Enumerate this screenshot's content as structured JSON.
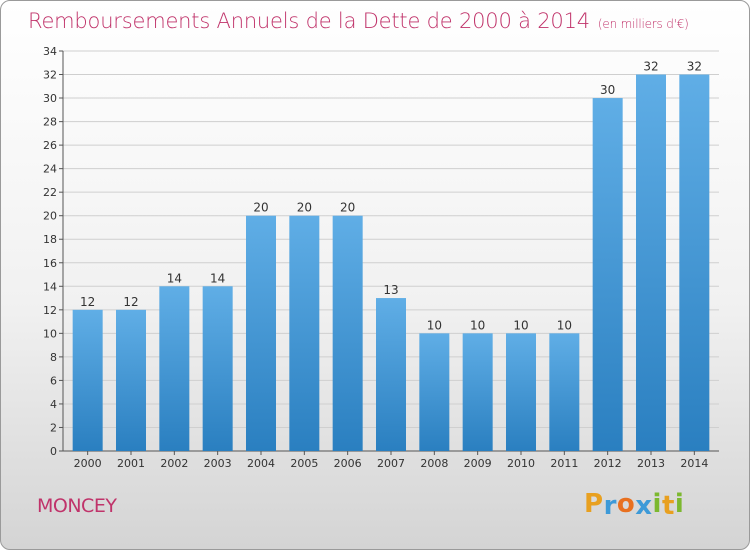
{
  "header": {
    "title": "Remboursements Annuels de la Dette de 2000 à 2014",
    "unit": "(en milliers d'€)"
  },
  "footer": {
    "commune": "MONCEY",
    "logo": {
      "text": "Proxiti",
      "letters": [
        "P",
        "r",
        "o",
        "x",
        "i",
        "t",
        "i"
      ],
      "colors": [
        "#e8a020",
        "#3d9ad8",
        "#e87020",
        "#3d9ad8",
        "#7cb82f",
        "#e8a020",
        "#7cb82f"
      ]
    }
  },
  "colors": {
    "accent": "#c0336a",
    "bar_top": "#60aee6",
    "bar_bottom": "#2a7fc0"
  },
  "chart_data": {
    "type": "bar",
    "title": "Remboursements Annuels de la Dette de 2000 à 2014",
    "xlabel": "",
    "ylabel": "en milliers d'€",
    "categories": [
      "2000",
      "2001",
      "2002",
      "2003",
      "2004",
      "2005",
      "2006",
      "2007",
      "2008",
      "2009",
      "2010",
      "2011",
      "2012",
      "2013",
      "2014"
    ],
    "values": [
      12,
      12,
      14,
      14,
      20,
      20,
      20,
      13,
      10,
      10,
      10,
      10,
      30,
      32,
      32
    ],
    "ylim": [
      0,
      34
    ],
    "yticks": [
      0,
      2,
      4,
      6,
      8,
      10,
      12,
      14,
      16,
      18,
      20,
      22,
      24,
      26,
      28,
      30,
      32,
      34
    ],
    "grid": true
  }
}
